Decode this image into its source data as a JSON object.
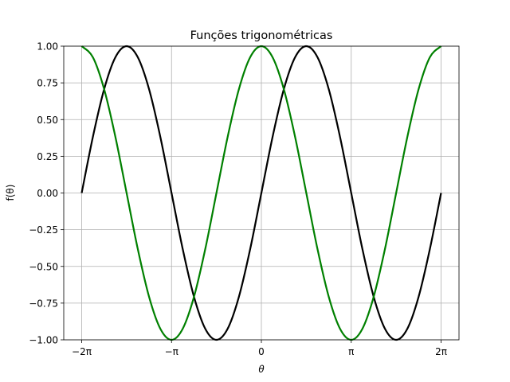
{
  "chart_data": {
    "type": "line",
    "title": "Funções trigonométricas",
    "xlabel": "θ",
    "ylabel": "f(θ)",
    "xlim": [
      -6.283185,
      6.283185
    ],
    "ylim": [
      -1.0,
      1.0
    ],
    "grid": true,
    "x_ticks": [
      {
        "value": -6.283185,
        "label": "−2π"
      },
      {
        "value": -3.141593,
        "label": "−π"
      },
      {
        "value": 0,
        "label": "0"
      },
      {
        "value": 3.141593,
        "label": "π"
      },
      {
        "value": 6.283185,
        "label": "2π"
      }
    ],
    "y_ticks": [
      {
        "value": 1.0,
        "label": "1.00"
      },
      {
        "value": 0.75,
        "label": "0.75"
      },
      {
        "value": 0.5,
        "label": "0.50"
      },
      {
        "value": 0.25,
        "label": "0.25"
      },
      {
        "value": 0.0,
        "label": "0.00"
      },
      {
        "value": -0.25,
        "label": "−0.25"
      },
      {
        "value": -0.5,
        "label": "−0.50"
      },
      {
        "value": -0.75,
        "label": "−0.75"
      },
      {
        "value": -1.0,
        "label": "−1.00"
      }
    ],
    "x": [
      -6.2832,
      -5.8905,
      -5.4978,
      -5.1051,
      -4.7124,
      -4.3197,
      -3.927,
      -3.5343,
      -3.1416,
      -2.7489,
      -2.3562,
      -1.9635,
      -1.5708,
      -1.1781,
      -0.7854,
      -0.3927,
      0.0,
      0.3927,
      0.7854,
      1.1781,
      1.5708,
      1.9635,
      2.3562,
      2.7489,
      3.1416,
      3.5343,
      3.927,
      4.3197,
      4.7124,
      5.1051,
      5.4978,
      5.8905,
      6.2832
    ],
    "series": [
      {
        "color": "#000000",
        "values": [
          0.0,
          0.383,
          0.707,
          0.924,
          1.0,
          0.924,
          0.707,
          0.383,
          0.0,
          -0.383,
          -0.707,
          -0.924,
          -1.0,
          -0.924,
          -0.707,
          -0.383,
          0.0,
          0.383,
          0.707,
          0.924,
          1.0,
          0.924,
          0.707,
          0.383,
          0.0,
          -0.383,
          -0.707,
          -0.924,
          -1.0,
          -0.924,
          -0.707,
          -0.383,
          0.0
        ]
      },
      {
        "color": "#008000",
        "values": [
          1.0,
          0.924,
          0.707,
          0.383,
          0.0,
          -0.383,
          -0.707,
          -0.924,
          -1.0,
          -0.924,
          -0.707,
          -0.383,
          0.0,
          0.383,
          0.707,
          0.924,
          1.0,
          0.924,
          0.707,
          0.383,
          0.0,
          -0.383,
          -0.707,
          -0.924,
          -1.0,
          -0.924,
          -0.707,
          -0.383,
          0.0,
          0.383,
          0.707,
          0.924,
          1.0
        ]
      }
    ]
  }
}
